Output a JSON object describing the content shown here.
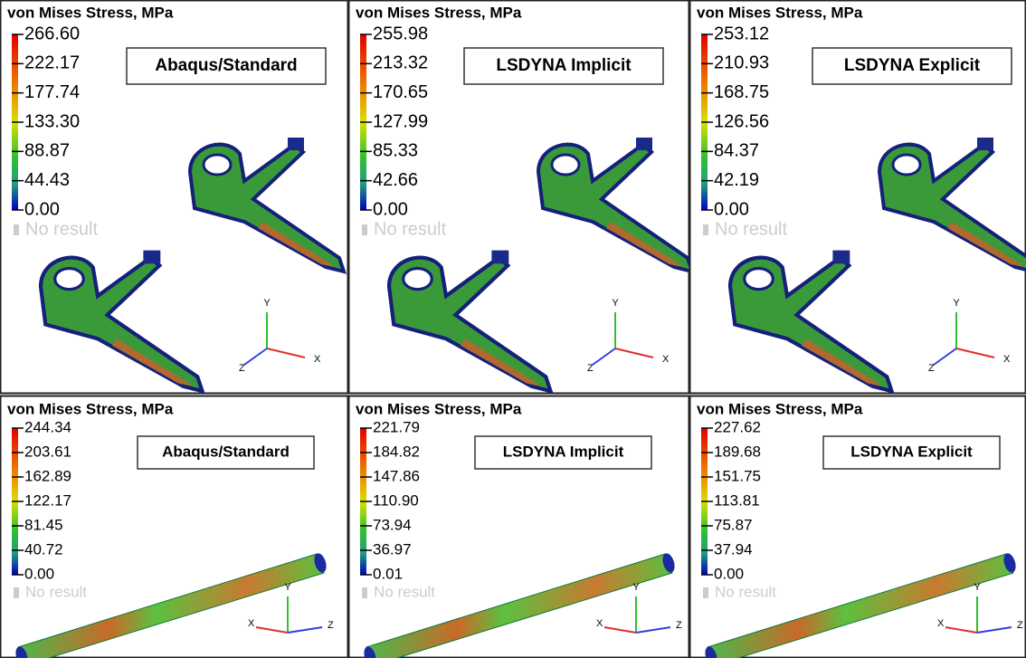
{
  "panels": [
    {
      "title": "von Mises Stress, MPa",
      "legend": [
        "266.60",
        "222.17",
        "177.74",
        "133.30",
        "88.87",
        "44.43",
        "0.00"
      ],
      "solver": "Abaqus/Standard",
      "no_result": "No result",
      "axes": {
        "y": "Y",
        "x": "X",
        "z": "Z"
      }
    },
    {
      "title": "von Mises Stress, MPa",
      "legend": [
        "255.98",
        "213.32",
        "170.65",
        "127.99",
        "85.33",
        "42.66",
        "0.00"
      ],
      "solver": "LSDYNA Implicit",
      "no_result": "No result",
      "axes": {
        "y": "Y",
        "x": "X",
        "z": "Z"
      }
    },
    {
      "title": "von Mises Stress, MPa",
      "legend": [
        "253.12",
        "210.93",
        "168.75",
        "126.56",
        "84.37",
        "42.19",
        "0.00"
      ],
      "solver": "LSDYNA Explicit",
      "no_result": "No result",
      "axes": {
        "y": "Y",
        "x": "X",
        "z": "Z"
      }
    },
    {
      "title": "von Mises Stress, MPa",
      "legend": [
        "244.34",
        "203.61",
        "162.89",
        "122.17",
        "81.45",
        "40.72",
        "0.00"
      ],
      "solver": "Abaqus/Standard",
      "no_result": "No result",
      "axes": {
        "y": "Y",
        "x": "X",
        "z": "Z"
      }
    },
    {
      "title": "von Mises Stress, MPa",
      "legend": [
        "221.79",
        "184.82",
        "147.86",
        "110.90",
        "73.94",
        "36.97",
        "0.01"
      ],
      "solver": "LSDYNA Implicit",
      "no_result": "No result",
      "axes": {
        "y": "Y",
        "x": "X",
        "z": "Z"
      }
    },
    {
      "title": "von Mises Stress, MPa",
      "legend": [
        "227.62",
        "189.68",
        "151.75",
        "113.81",
        "75.87",
        "37.94",
        "0.00"
      ],
      "solver": "LSDYNA Explicit",
      "no_result": "No result",
      "axes": {
        "y": "Y",
        "x": "X",
        "z": "Z"
      }
    }
  ]
}
